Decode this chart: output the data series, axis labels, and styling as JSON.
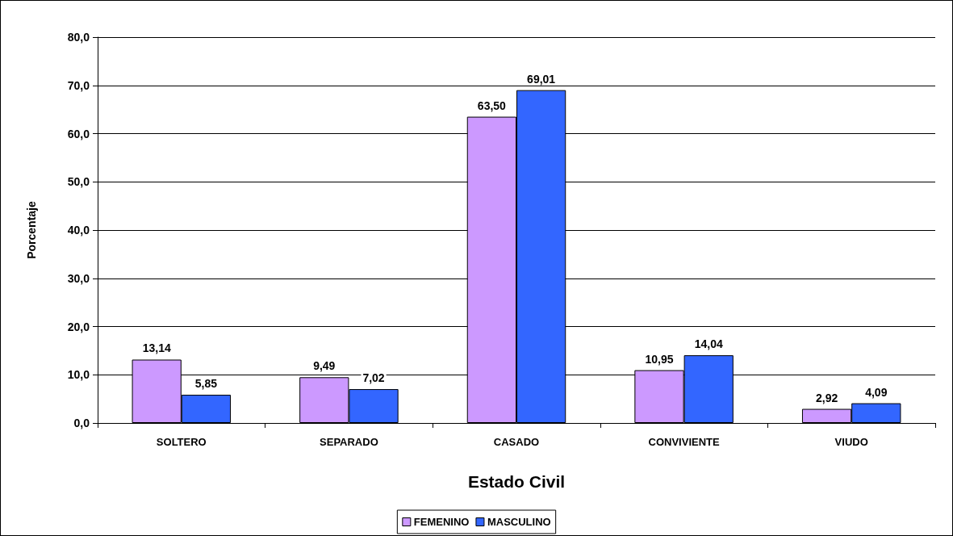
{
  "chart_data": {
    "type": "bar",
    "xlabel": "Estado Civil",
    "ylabel": "Porcentaje",
    "categories": [
      "SOLTERO",
      "SEPARADO",
      "CASADO",
      "CONVIVIENTE",
      "VIUDO"
    ],
    "series": [
      {
        "name": "FEMENINO",
        "color": "#cc99ff",
        "values": [
          13.14,
          9.49,
          63.5,
          10.95,
          2.92
        ],
        "value_labels": [
          "13,14",
          "9,49",
          "63,50",
          "10,95",
          "2,92"
        ]
      },
      {
        "name": "MASCULINO",
        "color": "#3366ff",
        "values": [
          5.85,
          7.02,
          69.01,
          14.04,
          4.09
        ],
        "value_labels": [
          "5,85",
          "7,02",
          "69,01",
          "14,04",
          "4,09"
        ]
      }
    ],
    "ylim": [
      0,
      80
    ],
    "yticks": [
      {
        "value": 0,
        "label": "0,0"
      },
      {
        "value": 10,
        "label": "10,0"
      },
      {
        "value": 20,
        "label": "20,0"
      },
      {
        "value": 30,
        "label": "30,0"
      },
      {
        "value": 40,
        "label": "40,0"
      },
      {
        "value": 50,
        "label": "50,0"
      },
      {
        "value": 60,
        "label": "60,0"
      },
      {
        "value": 70,
        "label": "70,0"
      },
      {
        "value": 80,
        "label": "80,0"
      }
    ],
    "grid": "y",
    "legend": "bottom"
  }
}
